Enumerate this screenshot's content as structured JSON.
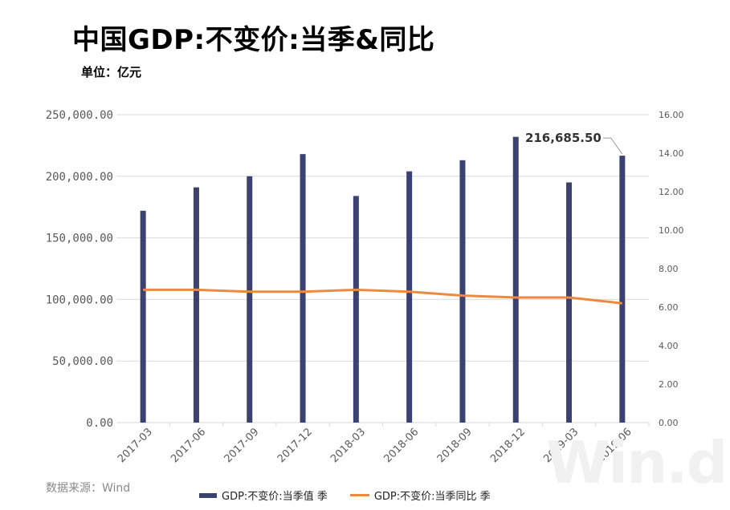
{
  "header": {
    "title": "中国GDP:不变价:当季&同比",
    "unit": "单位：亿元"
  },
  "footer": {
    "source": "数据来源：Wind",
    "watermark": "Win.d"
  },
  "colors": {
    "bar": "#3b4171",
    "line": "#ed8a3f",
    "grid": "#d9d9d9",
    "axis_text": "#595959"
  },
  "chart_data": {
    "type": "bar",
    "categories": [
      "2017-03",
      "2017-06",
      "2017-09",
      "2017-12",
      "2018-03",
      "2018-06",
      "2018-09",
      "2018-12",
      "2019-03",
      "2019-06"
    ],
    "series": [
      {
        "name": "GDP:不变价:当季值 季",
        "type": "bar",
        "axis": "left",
        "values": [
          172000,
          191000,
          200000,
          218000,
          184000,
          204000,
          213000,
          232000,
          195000,
          216685.5
        ]
      },
      {
        "name": "GDP:不变价:当季同比 季",
        "type": "line",
        "axis": "right",
        "values": [
          6.9,
          6.9,
          6.8,
          6.8,
          6.9,
          6.8,
          6.6,
          6.5,
          6.5,
          6.2
        ]
      }
    ],
    "left_axis": {
      "min": 0,
      "max": 250000,
      "ticks": [
        "0.00",
        "50,000.00",
        "100,000.00",
        "150,000.00",
        "200,000.00",
        "250,000.00"
      ]
    },
    "right_axis": {
      "min": 0,
      "max": 16,
      "ticks": [
        "0.00",
        "2.00",
        "4.00",
        "6.00",
        "8.00",
        "10.00",
        "12.00",
        "14.00",
        "16.00"
      ]
    },
    "annotation": {
      "text": "216,685.50",
      "category": "2019-06"
    },
    "grid": true,
    "legend_position": "bottom"
  }
}
